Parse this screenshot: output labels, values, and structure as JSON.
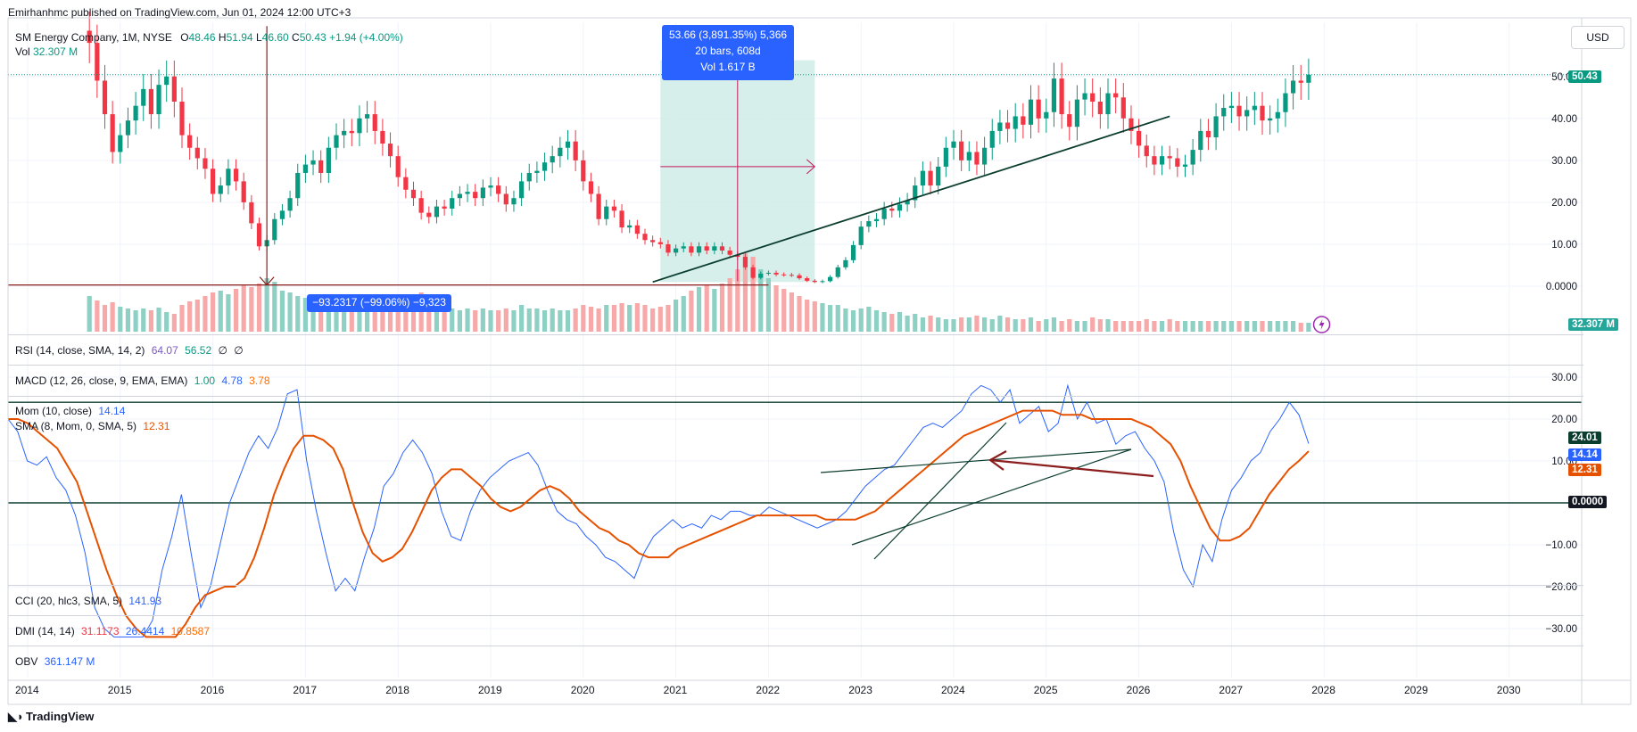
{
  "publisher": "Emirhanhmc published on TradingView.com, Jun 01, 2024 12:00 UTC+3",
  "currency": "USD",
  "symbol_header": {
    "name": "SM Energy Company, 1M, NYSE",
    "open_label": "O",
    "open": "48.46",
    "high_label": "H",
    "high": "51.94",
    "low_label": "L",
    "low": "46.60",
    "close_label": "C",
    "close": "50.43",
    "change": "+1.94 (+4.00%)"
  },
  "vol_header": {
    "label": "Vol",
    "value": "32.307 M"
  },
  "price_badge": "50.43",
  "volume_badge": "32.307 M",
  "measure_up": {
    "line1": "53.66 (3,891.35%) 5,366",
    "line2": "20 bars, 608d",
    "line3": "Vol 1.617 B"
  },
  "measure_down": {
    "text": "−93.2317 (−99.06%) −9,323"
  },
  "indicators": {
    "rsi": {
      "label": "RSI (14, close, SMA, 14, 2)",
      "v1": "64.07",
      "v2": "56.52",
      "v3": "∅",
      "v4": "∅"
    },
    "macd": {
      "label": "MACD (12, 26, close, 9, EMA, EMA)",
      "v1": "1.00",
      "v2": "4.78",
      "v3": "3.78"
    },
    "mom": {
      "label": "Mom (10, close)",
      "v1": "14.14"
    },
    "sma": {
      "label": "SMA (8, Mom, 0, SMA, 5)",
      "v1": "12.31"
    },
    "cci": {
      "label": "CCI (20, hlc3, SMA, 5)",
      "v1": "141.93"
    },
    "dmi": {
      "label": "DMI (14, 14)",
      "v1": "31.1173",
      "v2": "26.4414",
      "v3": "10.8587"
    },
    "obv": {
      "label": "OBV",
      "v1": "361.147 M"
    }
  },
  "mom_badges": {
    "level_high": "24.01",
    "mom": "14.14",
    "sma": "12.31",
    "zero": "0.0000"
  },
  "footer_logo": "TradingView",
  "colors": {
    "up": "#089981",
    "down": "#f23645",
    "vol_up": "#8fd0c4",
    "vol_down": "#f7a9a9",
    "mom_line": "#2962ff",
    "sma_line": "#e65100",
    "trend": "#0b3d2e",
    "measure_fill": "#cfece6",
    "measure_arrow": "#c2185b",
    "rsi_color": "#7e57c2",
    "macd_line": "#2962ff",
    "macd_signal": "#ff6d00"
  },
  "chart_data": [
    {
      "type": "candlestick",
      "title": "SM Energy Company, 1M, NYSE",
      "x_axis_ticks": [
        "2014",
        "2015",
        "2016",
        "2017",
        "2018",
        "2019",
        "2020",
        "2021",
        "2022",
        "2023",
        "2024",
        "2025",
        "2026",
        "2027",
        "2028",
        "2029",
        "2030"
      ],
      "y_axis_ticks": [
        "50.00",
        "40.00",
        "30.00",
        "20.00",
        "10.00",
        "0.0000"
      ],
      "ylim": [
        -5,
        62
      ],
      "start": "2014-09",
      "closes": [
        58.0,
        49.0,
        41.0,
        32.0,
        36.0,
        39.5,
        43.0,
        47.0,
        41.0,
        48.0,
        50.0,
        44.0,
        36.0,
        33.0,
        30.5,
        28.0,
        22.0,
        24.0,
        28.0,
        25.0,
        20.0,
        15.0,
        9.5,
        11.0,
        16.0,
        18.0,
        21.0,
        27.0,
        29.0,
        30.0,
        27.0,
        33.0,
        36.0,
        37.0,
        36.5,
        40.0,
        41.0,
        37.0,
        34.0,
        31.0,
        26.0,
        23.0,
        21.0,
        17.5,
        16.5,
        19.0,
        18.5,
        21.0,
        22.0,
        22.5,
        21.0,
        23.5,
        24.0,
        22.0,
        19.5,
        21.0,
        25.0,
        27.0,
        27.5,
        29.5,
        31.0,
        33.0,
        34.5,
        30.0,
        25.0,
        22.0,
        16.0,
        19.0,
        18.0,
        14.0,
        14.5,
        12.5,
        11.0,
        10.5,
        10.0,
        8.0,
        9.0,
        9.5,
        8.0,
        9.5,
        8.5,
        9.5,
        8.5,
        7.5,
        7.0,
        4.5,
        2.0,
        3.0,
        3.2,
        2.8,
        2.7,
        2.6,
        1.9,
        1.3,
        1.0,
        1.2,
        2.2,
        4.5,
        6.2,
        9.8,
        14.2,
        15.5,
        16.0,
        18.5,
        18.0,
        19.5,
        20.5,
        24.0,
        27.5,
        24.0,
        28.5,
        33.0,
        34.5,
        30.0,
        32.0,
        29.0,
        33.0,
        37.0,
        39.0,
        37.5,
        40.5,
        38.5,
        44.5,
        40.0,
        41.5,
        49.5,
        41.0,
        38.0,
        44.5,
        46.0,
        44.0,
        41.0,
        46.0,
        45.0,
        40.0,
        37.0,
        33.5,
        31.0,
        29.0,
        31.0,
        30.5,
        28.5,
        29.0,
        32.5,
        37.0,
        35.5,
        40.5,
        42.5,
        43.0,
        40.5,
        42.0,
        43.0,
        39.5,
        40.0,
        41.5,
        46.0,
        49.0,
        48.5,
        50.43
      ],
      "volume_months": 113,
      "up_color": "#089981",
      "down_color": "#f23645"
    },
    {
      "type": "line",
      "title": "Mom (10, close)",
      "y_axis_ticks": [
        "30.00",
        "20.00",
        "10.00",
        "0.0000",
        "−10.00",
        "−20.00",
        "−30.00"
      ],
      "ylim": [
        -30,
        30
      ],
      "series": [
        {
          "name": "Mom (10, close)",
          "color": "#2962ff",
          "values": [
            20,
            17,
            10,
            9,
            11,
            6,
            3,
            -3,
            -12,
            -25,
            -30,
            -33,
            -38,
            -34,
            -40,
            -28,
            -16,
            -8,
            2,
            -12,
            -25,
            -20,
            -10,
            0,
            6,
            12,
            16,
            13,
            18,
            26,
            27,
            10,
            -2,
            -12,
            -21,
            -18,
            -21,
            -13,
            -6,
            4,
            7,
            12,
            15,
            12,
            7,
            -2,
            -8,
            -9,
            -2,
            3,
            6,
            8,
            10,
            11,
            12,
            9,
            3,
            -2,
            -4,
            -5,
            -8,
            -10,
            -13,
            -14,
            -16,
            -18,
            -12,
            -8,
            -6,
            -4,
            -6,
            -5,
            -6,
            -3,
            -4,
            -2,
            -2,
            -3,
            -3,
            -1,
            -2,
            -3,
            -4,
            -5,
            -6,
            -5,
            -4,
            -2,
            1,
            4,
            6,
            8,
            9,
            12,
            15,
            18,
            19,
            18,
            20,
            22,
            26,
            28,
            27,
            24,
            27,
            19,
            21,
            23,
            17,
            19,
            28,
            20,
            24,
            19,
            20,
            14,
            16,
            17,
            13,
            10,
            5,
            -7,
            -16,
            -20,
            -10,
            -14,
            -4,
            3,
            6,
            10,
            12,
            17,
            20,
            24,
            21,
            14.14
          ]
        },
        {
          "name": "SMA (8, Mom, 0, SMA, 5)",
          "color": "#e65100",
          "values": [
            20,
            20,
            19,
            17,
            15,
            13,
            9,
            5,
            -2,
            -9,
            -16,
            -22,
            -27,
            -30,
            -33,
            -34,
            -34,
            -32,
            -29,
            -25,
            -22,
            -21,
            -20,
            -20,
            -18,
            -13,
            -6,
            2,
            8,
            13,
            16,
            16,
            15,
            13,
            8,
            0,
            -7,
            -12,
            -14,
            -13,
            -11,
            -7,
            -2,
            3,
            6,
            8,
            8,
            6,
            4,
            1,
            -1,
            -2,
            -1,
            1,
            3,
            4,
            3,
            1,
            -2,
            -4,
            -6,
            -7,
            -9,
            -10,
            -12,
            -13,
            -13,
            -13,
            -11,
            -10,
            -9,
            -8,
            -7,
            -6,
            -5,
            -4,
            -3,
            -3,
            -3,
            -3,
            -3,
            -3,
            -3,
            -4,
            -4,
            -4,
            -4,
            -3,
            -2,
            0,
            2,
            4,
            6,
            8,
            10,
            12,
            14,
            16,
            17,
            18,
            19,
            20,
            21,
            22,
            22,
            22,
            22,
            21,
            21,
            21,
            20,
            20,
            20,
            20,
            20,
            19,
            18,
            16,
            14,
            10,
            4,
            -1,
            -6,
            -9,
            -9,
            -8,
            -6,
            -2,
            2,
            5,
            8,
            10,
            12.31
          ]
        }
      ]
    }
  ]
}
